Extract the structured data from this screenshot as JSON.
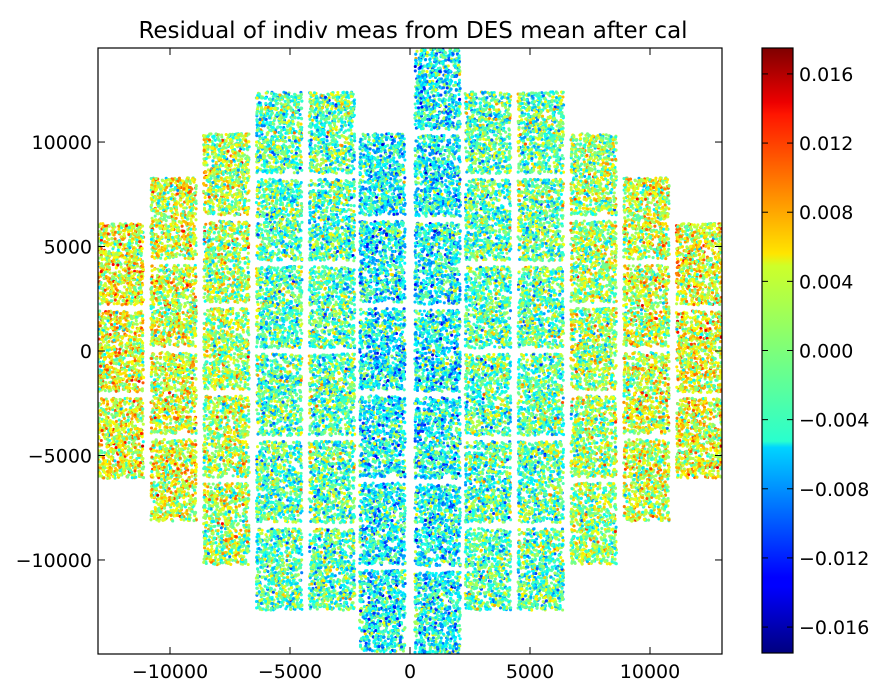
{
  "chart_data": {
    "type": "scatter",
    "title": "Residual of indiv meas from DES mean after cal",
    "xlabel": "",
    "ylabel": "",
    "xlim": [
      -13000,
      13000
    ],
    "ylim": [
      -14500,
      14500
    ],
    "xticks": [
      {
        "value": -10000,
        "label": "−10000"
      },
      {
        "value": -5000,
        "label": "−5000"
      },
      {
        "value": 0,
        "label": "0"
      },
      {
        "value": 5000,
        "label": "5000"
      },
      {
        "value": 10000,
        "label": "10000"
      }
    ],
    "yticks": [
      {
        "value": 10000,
        "label": "10000"
      },
      {
        "value": 5000,
        "label": "5000"
      },
      {
        "value": 0,
        "label": "0"
      },
      {
        "value": -5000,
        "label": "−5000"
      },
      {
        "value": -10000,
        "label": "−10000"
      }
    ],
    "grid": false,
    "colorbar": {
      "colormap": "jet",
      "range": [
        -0.0175,
        0.0175
      ],
      "ticks": [
        {
          "value": 0.016,
          "label": "0.016"
        },
        {
          "value": 0.012,
          "label": "0.012"
        },
        {
          "value": 0.008,
          "label": "0.008"
        },
        {
          "value": 0.004,
          "label": "0.004"
        },
        {
          "value": 0.0,
          "label": "0.000"
        },
        {
          "value": -0.004,
          "label": "−0.004"
        },
        {
          "value": -0.008,
          "label": "−0.008"
        },
        {
          "value": -0.012,
          "label": "−0.012"
        },
        {
          "value": -0.016,
          "label": "−0.016"
        }
      ]
    },
    "ccd_columns": [
      {
        "x": [
          -13000,
          -11100
        ],
        "y": [
          -6100,
          6100
        ],
        "mean": 0.0035
      },
      {
        "x": [
          -10800,
          -8900
        ],
        "y": [
          -8300,
          8300
        ],
        "mean": 0.003
      },
      {
        "x": [
          -8600,
          -6700
        ],
        "y": [
          -10400,
          10400
        ],
        "mean": 0.0015
      },
      {
        "x": [
          -6400,
          -4500
        ],
        "y": [
          -12400,
          12400
        ],
        "mean": -0.0015
      },
      {
        "x": [
          -4200,
          -2300
        ],
        "y": [
          -12400,
          12400
        ],
        "mean": -0.0015
      },
      {
        "x": [
          -2100,
          -200
        ],
        "y": [
          -14500,
          10400
        ],
        "mean": -0.004
      },
      {
        "x": [
          200,
          2100
        ],
        "y": [
          -14500,
          14500
        ],
        "mean": -0.004
      },
      {
        "x": [
          2300,
          4200
        ],
        "y": [
          -12400,
          12400
        ],
        "mean": -0.0015
      },
      {
        "x": [
          4500,
          6400
        ],
        "y": [
          -12400,
          12400
        ],
        "mean": -0.001
      },
      {
        "x": [
          6700,
          8600
        ],
        "y": [
          -10400,
          10400
        ],
        "mean": 0.001
      },
      {
        "x": [
          8900,
          10800
        ],
        "y": [
          -8300,
          8300
        ],
        "mean": 0.0025
      },
      {
        "x": [
          11100,
          13000
        ],
        "y": [
          -6100,
          6100
        ],
        "mean": 0.0035
      }
    ]
  }
}
